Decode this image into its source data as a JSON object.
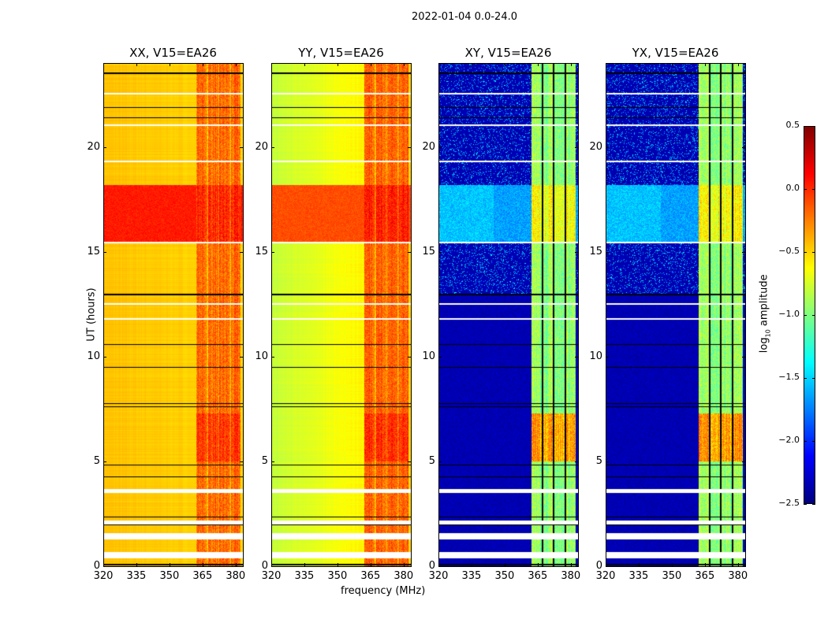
{
  "chart_data": {
    "type": "heatmap",
    "suptitle": "2022-01-04 0.0-24.0",
    "xlabel": "frequency (MHz)",
    "ylabel": "UT (hours)",
    "xlim": [
      320,
      383.3
    ],
    "ylim": [
      0,
      24
    ],
    "xticks": [
      320,
      335,
      350,
      365,
      380
    ],
    "yticks": [
      0,
      5,
      10,
      15,
      20
    ],
    "panels": [
      {
        "title": "XX, V15=EA26",
        "polarization": "XX",
        "base_level": -0.45,
        "band_level": -0.2,
        "storm_level": 0.05
      },
      {
        "title": "YY, V15=EA26",
        "polarization": "YY",
        "base_level": -0.8,
        "band_level": -0.15,
        "storm_level": -0.1
      },
      {
        "title": "XY, V15=EA26",
        "polarization": "XY",
        "base_level": -2.35,
        "band_level": -0.95,
        "storm_level": -1.65
      },
      {
        "title": "YX, V15=EA26",
        "polarization": "YX",
        "base_level": -2.35,
        "band_level": -0.95,
        "storm_level": -1.65
      }
    ],
    "band_mhz": [
      362,
      382
    ],
    "band_gap_channels_mhz": [
      367,
      372,
      377.4
    ],
    "enhanced_hours": [
      15.5,
      18.2
    ],
    "flagged_black_hours": [
      0.1,
      1.99,
      2.36,
      4.28,
      4.84,
      7.62,
      7.77,
      9.5,
      10.58,
      12.98,
      21.4,
      21.9,
      23.53
    ],
    "flagged_white_hours": [
      [
        0.4,
        0.7
      ],
      [
        1.3,
        1.58
      ],
      [
        2.02,
        2.2
      ],
      [
        3.5,
        3.7
      ],
      [
        11.78,
        11.85
      ],
      [
        12.48,
        12.55
      ],
      [
        15.4,
        15.5
      ],
      [
        19.28,
        19.35
      ],
      [
        21.02,
        21.08
      ],
      [
        22.52,
        22.58
      ]
    ],
    "colorbar": {
      "label_main": "log",
      "label_sub": "10",
      "label_rest": " amplitude",
      "colormap": "jet",
      "vmin": -2.5,
      "vmax": 0.5,
      "ticks": [
        "0.5",
        "0.0",
        "−0.5",
        "−1.0",
        "−1.5",
        "−2.0",
        "−2.5"
      ],
      "tick_values": [
        0.5,
        0.0,
        -0.5,
        -1.0,
        -1.5,
        -2.0,
        -2.5
      ]
    }
  }
}
